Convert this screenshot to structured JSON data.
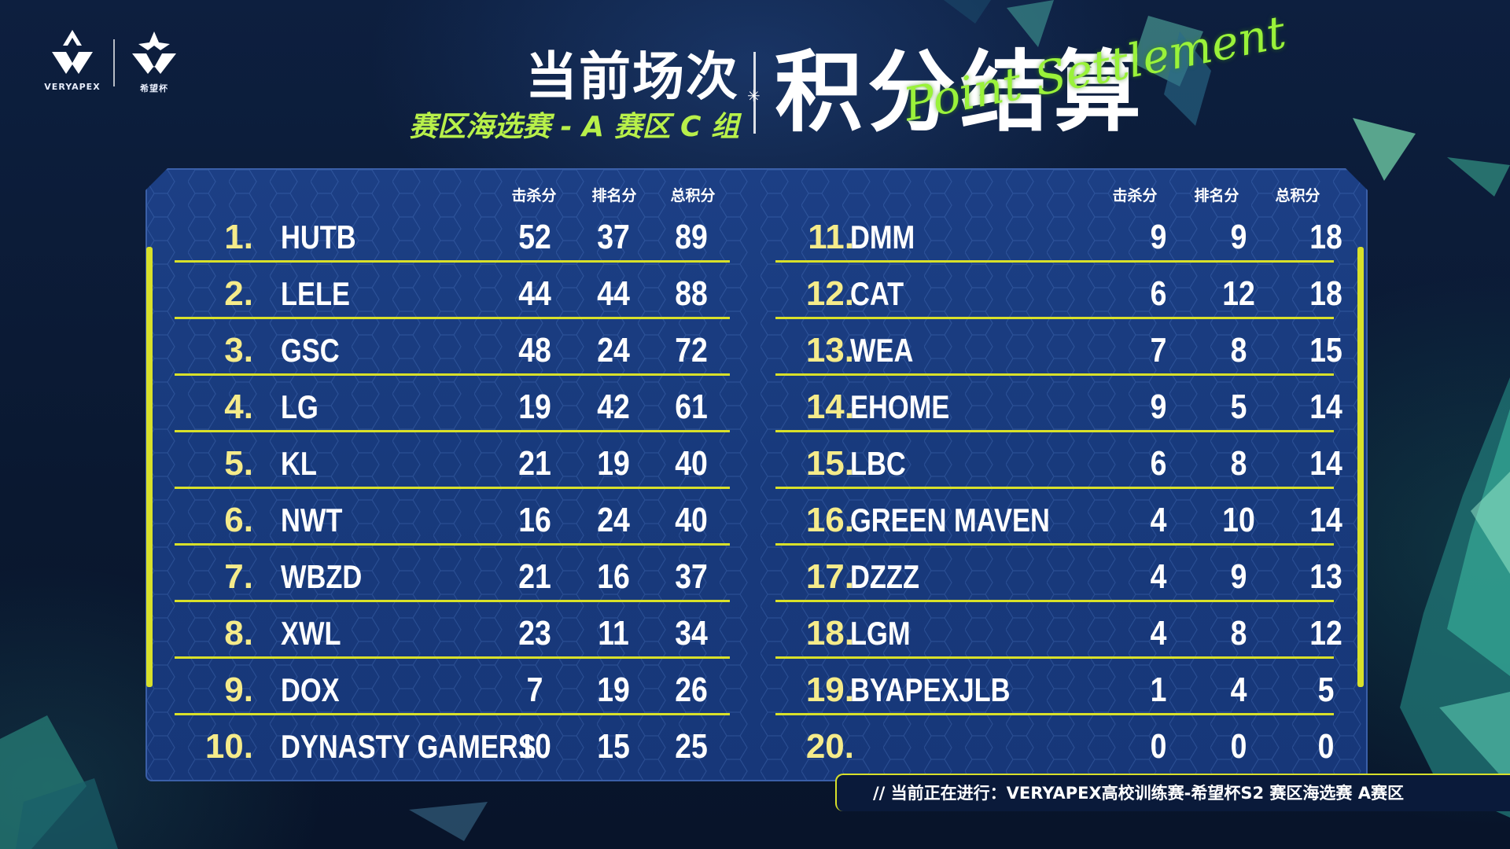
{
  "logos": {
    "left_caption": "VERYAPEX",
    "right_caption": "希望杯"
  },
  "title": {
    "current_round": "当前场次",
    "subtitle": "赛区海选赛 - A 赛区 C 组",
    "main": "积分结算",
    "script": "Point Settlement"
  },
  "columns": {
    "kills": "击杀分",
    "placement": "排名分",
    "total": "总积分"
  },
  "colors": {
    "accent_yellow": "#d8e02a",
    "accent_green": "#b8f04a",
    "panel_blue": "#1c3f85"
  },
  "left_table": [
    {
      "rank": "1.",
      "team": "HUTB",
      "kills": "52",
      "placement": "37",
      "total": "89"
    },
    {
      "rank": "2.",
      "team": "LELE",
      "kills": "44",
      "placement": "44",
      "total": "88"
    },
    {
      "rank": "3.",
      "team": "GSC",
      "kills": "48",
      "placement": "24",
      "total": "72"
    },
    {
      "rank": "4.",
      "team": "LG",
      "kills": "19",
      "placement": "42",
      "total": "61"
    },
    {
      "rank": "5.",
      "team": "KL",
      "kills": "21",
      "placement": "19",
      "total": "40"
    },
    {
      "rank": "6.",
      "team": "NWT",
      "kills": "16",
      "placement": "24",
      "total": "40"
    },
    {
      "rank": "7.",
      "team": "WBZD",
      "kills": "21",
      "placement": "16",
      "total": "37"
    },
    {
      "rank": "8.",
      "team": "XWL",
      "kills": "23",
      "placement": "11",
      "total": "34"
    },
    {
      "rank": "9.",
      "team": "DOX",
      "kills": "7",
      "placement": "19",
      "total": "26"
    },
    {
      "rank": "10.",
      "team": "DYNASTY GAMERS",
      "kills": "10",
      "placement": "15",
      "total": "25"
    }
  ],
  "right_table": [
    {
      "rank": "11.",
      "team": "DMM",
      "kills": "9",
      "placement": "9",
      "total": "18"
    },
    {
      "rank": "12.",
      "team": "CAT",
      "kills": "6",
      "placement": "12",
      "total": "18"
    },
    {
      "rank": "13.",
      "team": "WEA",
      "kills": "7",
      "placement": "8",
      "total": "15"
    },
    {
      "rank": "14.",
      "team": "EHOME",
      "kills": "9",
      "placement": "5",
      "total": "14"
    },
    {
      "rank": "15.",
      "team": "LBC",
      "kills": "6",
      "placement": "8",
      "total": "14"
    },
    {
      "rank": "16.",
      "team": "GREEN MAVEN",
      "kills": "4",
      "placement": "10",
      "total": "14"
    },
    {
      "rank": "17.",
      "team": "DZZZ",
      "kills": "4",
      "placement": "9",
      "total": "13"
    },
    {
      "rank": "18.",
      "team": "LGM",
      "kills": "4",
      "placement": "8",
      "total": "12"
    },
    {
      "rank": "19.",
      "team": "BYAPEXJLB",
      "kills": "1",
      "placement": "4",
      "total": "5"
    },
    {
      "rank": "20.",
      "team": "",
      "kills": "0",
      "placement": "0",
      "total": "0"
    }
  ],
  "ticker": {
    "text": "//   当前正在进行：VERYAPEX高校训练赛-希望杯S2  赛区海选赛    A赛区"
  }
}
